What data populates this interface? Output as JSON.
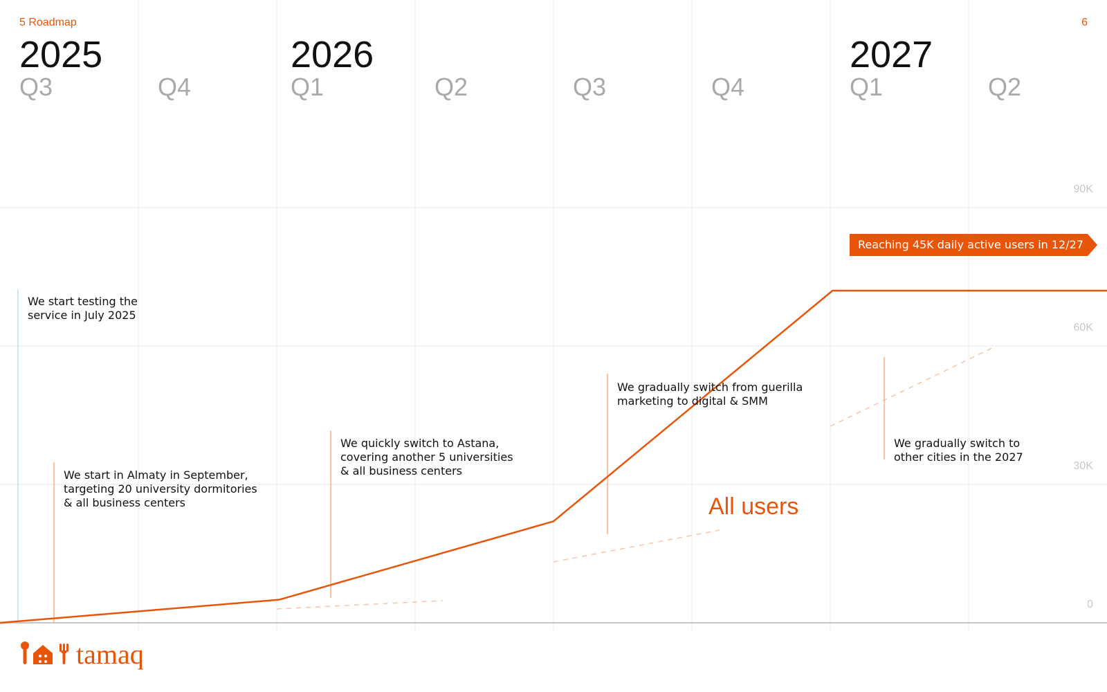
{
  "header": {
    "left": "5  Roadmap",
    "right": "6"
  },
  "timeline": {
    "years": [
      {
        "label": "2025"
      },
      {
        "label": "2026"
      },
      {
        "label": "2027"
      }
    ],
    "quarters": [
      {
        "label": "Q3"
      },
      {
        "label": "Q4"
      },
      {
        "label": "Q1"
      },
      {
        "label": "Q2"
      },
      {
        "label": "Q3"
      },
      {
        "label": "Q4"
      },
      {
        "label": "Q1"
      },
      {
        "label": "Q2"
      }
    ]
  },
  "callouts": [
    {
      "text": "We start testing the\nservice in July 2025"
    },
    {
      "text": "We start in Almaty in September,\ntargeting 20 university dormitories\n& all business centers"
    },
    {
      "text": "We quickly switch to Astana,\ncovering another 5 universities\n& all business centers"
    },
    {
      "text": "We gradually switch from guerilla\nmarketing to digital & SMM"
    },
    {
      "text": "We gradually switch to\nother cities in the 2027"
    }
  ],
  "milestone": {
    "text": "Reaching 45K daily active users in 12/27"
  },
  "brand": {
    "name": "tamaq"
  },
  "chart_data": {
    "type": "line",
    "x": [
      "2025-07",
      "2026-01",
      "2026-07",
      "2027-01",
      "2027-07"
    ],
    "series": [
      {
        "name": "All users",
        "values": [
          0,
          5000,
          22000,
          72000,
          72000
        ]
      }
    ],
    "y_ticks": [
      {
        "value": 0,
        "label": "0"
      },
      {
        "value": 30000,
        "label": "30K"
      },
      {
        "value": 60000,
        "label": "60K"
      },
      {
        "value": 90000,
        "label": "90K"
      }
    ],
    "colors": {
      "line": "#e8550a",
      "grid": "#e8e8e8",
      "callout_line": "#f3b28f",
      "first_callout_line": "#bfe1f5"
    }
  }
}
